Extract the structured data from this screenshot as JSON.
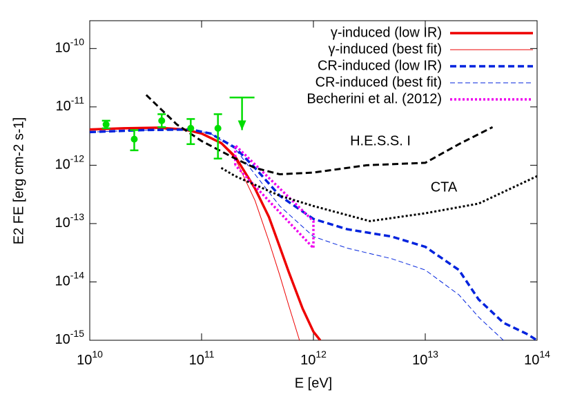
{
  "chart_data": {
    "type": "line",
    "xlabel": "E [eV]",
    "ylabel": "E2 FE [erg cm-2 s-1]",
    "xlog": true,
    "ylog": true,
    "xlim": [
      10000000000.0,
      100000000000000.0
    ],
    "ylim": [
      1e-15,
      3e-10
    ],
    "xticks": [
      {
        "value": 10000000000.0,
        "label": "1010"
      },
      {
        "value": 100000000000.0,
        "label": "1011"
      },
      {
        "value": 1000000000000.0,
        "label": "1012"
      },
      {
        "value": 10000000000000.0,
        "label": "1013"
      },
      {
        "value": 100000000000000.0,
        "label": "1014"
      }
    ],
    "yticks": [
      {
        "value": 1e-15,
        "label": "10-15"
      },
      {
        "value": 1e-14,
        "label": "10-14"
      },
      {
        "value": 1e-13,
        "label": "10-13"
      },
      {
        "value": 1e-12,
        "label": "10-12"
      },
      {
        "value": 1e-11,
        "label": "10-11"
      },
      {
        "value": 1e-10,
        "label": "10-10"
      }
    ],
    "legend": "top-right",
    "annotations": [
      "H.E.S.S. I",
      "CTA"
    ],
    "series": [
      {
        "name": "γ-induced (low IR)",
        "color": "#ee0000",
        "width": 3.5,
        "dash": "solid",
        "x": [
          10000000000.0,
          20000000000.0,
          40000000000.0,
          70000000000.0,
          100000000000.0,
          150000000000.0,
          200000000000.0,
          300000000000.0,
          400000000000.0,
          500000000000.0,
          600000000000.0,
          800000000000.0,
          1000000000000.0,
          1150000000000.0
        ],
        "values": [
          4.1e-12,
          4.3e-12,
          4.4e-12,
          4.1e-12,
          3.5e-12,
          2.4e-12,
          1.4e-12,
          4e-13,
          1.3e-13,
          4e-14,
          1.5e-14,
          3.5e-15,
          1.4e-15,
          1e-15
        ]
      },
      {
        "name": "γ-induced (best fit)",
        "color": "#ee0000",
        "width": 1,
        "dash": "solid",
        "x": [
          10000000000.0,
          20000000000.0,
          40000000000.0,
          70000000000.0,
          100000000000.0,
          150000000000.0,
          200000000000.0,
          300000000000.0,
          400000000000.0,
          500000000000.0,
          600000000000.0,
          750000000000.0
        ],
        "values": [
          4.1e-12,
          4.3e-12,
          4.4e-12,
          4.1e-12,
          3.5e-12,
          2.3e-12,
          1.3e-12,
          2.5e-13,
          5e-14,
          1.3e-14,
          4e-15,
          1e-15
        ]
      },
      {
        "name": "CR-induced (low IR)",
        "color": "#0022dd",
        "width": 3.5,
        "dash": "dashed",
        "x": [
          10000000000.0,
          30000000000.0,
          80000000000.0,
          120000000000.0,
          200000000000.0,
          300000000000.0,
          500000000000.0,
          1000000000000.0,
          2000000000000.0,
          5000000000000.0,
          10000000000000.0,
          20000000000000.0,
          30000000000000.0,
          50000000000000.0,
          80000000000000.0,
          100000000000000.0
        ],
        "values": [
          3.7e-12,
          4e-12,
          4.1e-12,
          3.5e-12,
          2e-12,
          9e-13,
          3e-13,
          1.2e-13,
          8e-14,
          6e-14,
          4e-14,
          1.6e-14,
          5e-15,
          2e-15,
          1.3e-15,
          1e-15
        ]
      },
      {
        "name": "CR-induced (best fit)",
        "color": "#0022dd",
        "width": 1,
        "dash": "dashed",
        "x": [
          10000000000.0,
          30000000000.0,
          80000000000.0,
          120000000000.0,
          200000000000.0,
          300000000000.0,
          500000000000.0,
          1000000000000.0,
          2000000000000.0,
          5000000000000.0,
          10000000000000.0,
          20000000000000.0,
          30000000000000.0,
          50000000000000.0
        ],
        "values": [
          3.7e-12,
          4e-12,
          4.1e-12,
          3.5e-12,
          1.9e-12,
          7e-13,
          2e-13,
          6e-14,
          3.8e-14,
          2.5e-14,
          1.6e-14,
          6e-15,
          2.5e-15,
          1e-15
        ]
      },
      {
        "name": "Becherini et al. (2012)",
        "color": "#ee00ee",
        "width": 3.5,
        "dash": "dotted",
        "x": [
          200000000000.0,
          200000000000.0,
          1000000000000.0,
          1000000000000.0,
          200000000000.0
        ],
        "values": [
          1e-12,
          2.2e-12,
          1.1e-13,
          3.8e-14,
          1e-12
        ]
      },
      {
        "color": "#000000",
        "width": 3,
        "dash": "dashed",
        "x": [
          32000000000.0,
          60000000000.0,
          100000000000.0,
          200000000000.0,
          300000000000.0,
          500000000000.0,
          1000000000000.0,
          3000000000000.0,
          10000000000000.0,
          20000000000000.0,
          40000000000000.0
        ],
        "values": [
          1.6e-11,
          5e-12,
          2.6e-12,
          1.3e-12,
          9e-13,
          7e-13,
          7.5e-13,
          1e-12,
          1.1e-12,
          2.3e-12,
          4.5e-12
        ]
      },
      {
        "color": "#000000",
        "width": 3,
        "dash": "dotted",
        "x": [
          150000000000.0,
          200000000000.0,
          500000000000.0,
          1000000000000.0,
          3200000000000.0,
          10000000000000.0,
          30000000000000.0,
          100000000000000.0
        ],
        "values": [
          9e-13,
          6.5e-13,
          3e-13,
          2e-13,
          1.1e-13,
          1.5e-13,
          2.2e-13,
          6.5e-13
        ]
      }
    ],
    "points": {
      "color": "#00dd00",
      "x": [
        14000000000.0,
        25000000000.0,
        44000000000.0,
        80000000000.0,
        140000000000.0
      ],
      "values": [
        5e-12,
        2.8e-12,
        5.8e-12,
        4.3e-12,
        4.3e-12
      ],
      "lower": [
        4.3e-12,
        1.8e-12,
        4.5e-12,
        2.3e-12,
        1.3e-12
      ],
      "upper": [
        5.8e-12,
        4e-12,
        7.5e-12,
        6.2e-12,
        7.5e-12
      ]
    },
    "upper_limits": {
      "color": "#00dd00",
      "x": [
        230000000000.0
      ],
      "values": [
        1.45e-11
      ],
      "arrow_to": [
        4e-12
      ]
    }
  }
}
